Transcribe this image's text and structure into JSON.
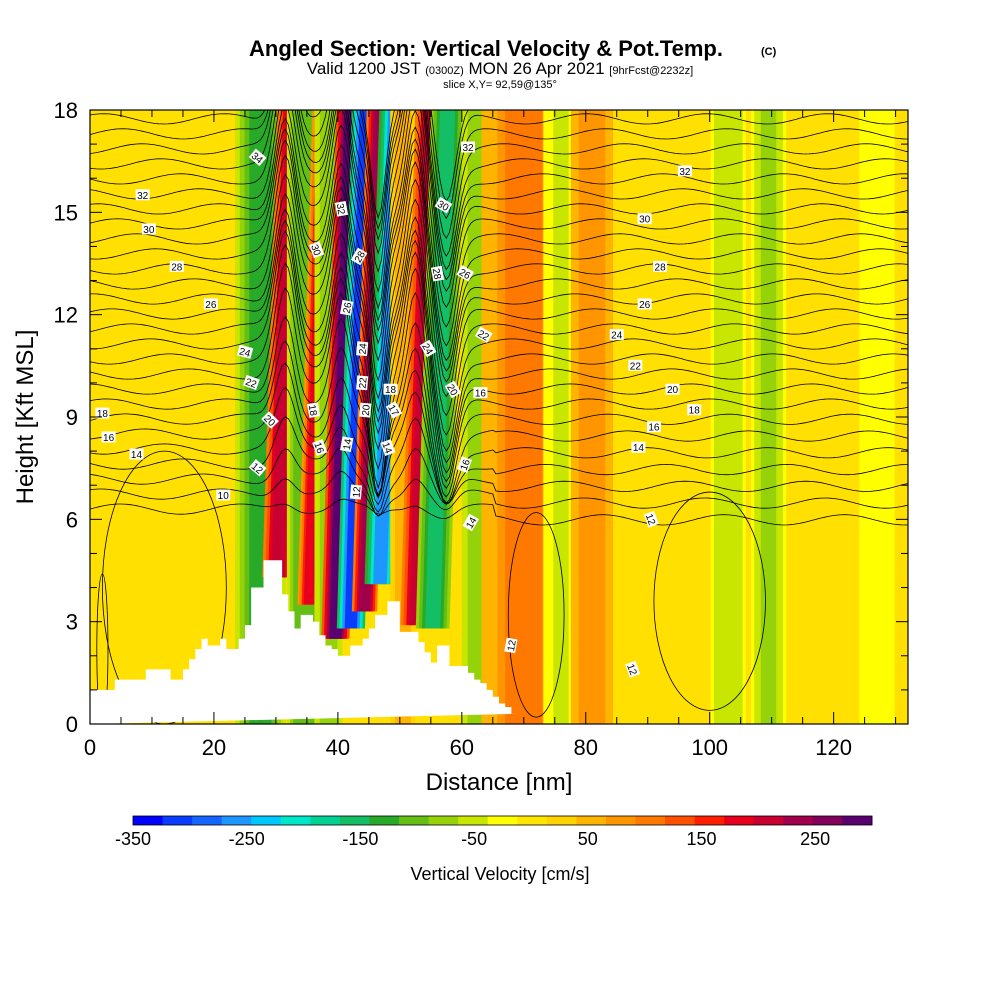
{
  "chart_data": {
    "type": "heatmap",
    "title": "Angled Section: Vertical Velocity & Pot.Temp.",
    "title_unit": "(C)",
    "subtitle": {
      "prefix": "Valid 1200 JST",
      "utc": "(0300Z)",
      "date": "MON 26 Apr 2021",
      "forecast": "[9hrFcst@2232z]"
    },
    "slice_text": "slice X,Y= 92,59@135°",
    "xlabel": "Distance [nm]",
    "ylabel": "Height [Kft MSL]",
    "xlim": [
      0,
      132
    ],
    "ylim": [
      0,
      18
    ],
    "x_ticks": [
      0,
      20,
      40,
      60,
      80,
      100,
      120
    ],
    "y_ticks": [
      0,
      3,
      6,
      9,
      12,
      15,
      18
    ],
    "grid": false,
    "colorbar": {
      "label": "Vertical Velocity [cm/s]",
      "ticks": [
        -350,
        -250,
        -150,
        -50,
        50,
        150,
        250
      ],
      "range": [
        -350,
        300
      ],
      "colors": [
        "#0000ff",
        "#0a3cff",
        "#1466ff",
        "#1e96ff",
        "#00c8ff",
        "#00e6c8",
        "#00d296",
        "#14be64",
        "#28aa28",
        "#64be14",
        "#96d20a",
        "#c8e600",
        "#ffff00",
        "#ffe600",
        "#ffd200",
        "#ffb400",
        "#ff9600",
        "#ff7800",
        "#ff5000",
        "#ff1e00",
        "#e6001e",
        "#c80032",
        "#a0004b",
        "#80005a",
        "#5a006e"
      ]
    },
    "vertical_velocity_columns": [
      {
        "x": 27.5,
        "w": 3.6,
        "value": -120
      },
      {
        "x": 31.5,
        "w": 2.2,
        "value": 220
      },
      {
        "x": 34.5,
        "w": 2.4,
        "value": -110
      },
      {
        "x": 36.5,
        "w": 1.6,
        "value": 180
      },
      {
        "x": 38.5,
        "w": 2.0,
        "value": -90
      },
      {
        "x": 40.8,
        "w": 2.0,
        "value": 280
      },
      {
        "x": 43.3,
        "w": 2.0,
        "value": -300
      },
      {
        "x": 45.5,
        "w": 1.8,
        "value": 240
      },
      {
        "x": 48.0,
        "w": 2.2,
        "value": -250
      },
      {
        "x": 50.5,
        "w": 1.8,
        "value": 60
      },
      {
        "x": 53.8,
        "w": 2.2,
        "value": 220
      },
      {
        "x": 56.5,
        "w": 2.4,
        "value": -160
      },
      {
        "x": 62.5,
        "w": 2.2,
        "value": -90
      },
      {
        "x": 70.0,
        "w": 6.0,
        "value": 95
      },
      {
        "x": 76.0,
        "w": 2.5,
        "value": -40
      },
      {
        "x": 81.0,
        "w": 3.0,
        "value": 85
      },
      {
        "x": 103.0,
        "w": 2.5,
        "value": -60
      },
      {
        "x": 109.5,
        "w": 2.5,
        "value": -70
      },
      {
        "x": 127.0,
        "w": 2.5,
        "value": -30
      }
    ],
    "terrain": {
      "x": [
        0,
        4,
        4,
        9,
        9,
        13,
        13,
        15,
        15,
        16,
        16,
        17,
        17,
        18,
        18,
        19,
        19,
        21,
        21,
        22,
        22,
        24,
        24,
        25,
        25,
        26,
        26,
        28,
        28,
        31,
        31,
        32,
        32,
        33,
        33,
        34,
        34,
        36,
        36,
        37,
        37,
        38,
        38,
        39,
        39,
        40,
        40,
        42,
        42,
        44,
        44,
        45,
        45,
        46,
        46,
        48,
        48,
        50,
        50,
        53,
        53,
        54,
        54,
        55,
        55,
        56,
        56,
        58,
        58,
        61,
        61,
        62,
        62,
        63,
        63,
        64,
        64,
        65,
        65,
        66,
        66,
        67,
        67,
        68,
        68,
        69,
        69,
        132
      ],
      "y": [
        1.0,
        1.0,
        1.3,
        1.3,
        1.6,
        1.6,
        1.3,
        1.3,
        1.6,
        1.6,
        1.9,
        1.9,
        2.2,
        2.2,
        2.5,
        2.5,
        2.3,
        2.3,
        2.5,
        2.5,
        2.2,
        2.2,
        2.5,
        2.5,
        2.9,
        2.9,
        4.0,
        4.0,
        4.8,
        4.8,
        3.8,
        3.8,
        3.3,
        3.3,
        2.8,
        2.8,
        3.2,
        3.2,
        3.0,
        3.0,
        2.6,
        2.6,
        2.3,
        2.3,
        2.2,
        2.2,
        2.0,
        2.0,
        2.3,
        2.3,
        2.5,
        2.5,
        2.8,
        2.8,
        3.2,
        3.2,
        3.6,
        3.6,
        2.7,
        2.7,
        2.4,
        2.4,
        2.1,
        2.1,
        1.8,
        1.8,
        2.3,
        2.3,
        1.7,
        1.7,
        1.5,
        1.5,
        1.3,
        1.3,
        1.2,
        1.2,
        1.0,
        1.0,
        0.8,
        0.8,
        0.6,
        0.6,
        0.5,
        0.5,
        0.3,
        0.3,
        0.3
      ]
    },
    "contour_labels": [
      {
        "x": 27,
        "y": 16.6,
        "text": "34",
        "angle": 40
      },
      {
        "x": 8.5,
        "y": 15.5,
        "text": "32",
        "angle": 0
      },
      {
        "x": 9.5,
        "y": 14.5,
        "text": "30",
        "angle": 0
      },
      {
        "x": 14,
        "y": 13.4,
        "text": "28",
        "angle": 0
      },
      {
        "x": 19.5,
        "y": 12.3,
        "text": "26",
        "angle": 0
      },
      {
        "x": 25,
        "y": 10.9,
        "text": "24",
        "angle": 15
      },
      {
        "x": 26,
        "y": 10.0,
        "text": "22",
        "angle": 20
      },
      {
        "x": 29,
        "y": 8.9,
        "text": "20",
        "angle": 45
      },
      {
        "x": 2,
        "y": 9.1,
        "text": "18",
        "angle": 0
      },
      {
        "x": 3,
        "y": 8.4,
        "text": "16",
        "angle": 0
      },
      {
        "x": 7.5,
        "y": 7.9,
        "text": "14",
        "angle": 0
      },
      {
        "x": 27,
        "y": 7.5,
        "text": "12",
        "angle": 40
      },
      {
        "x": 21.5,
        "y": 6.7,
        "text": "10",
        "angle": 0
      },
      {
        "x": 40.5,
        "y": 15.1,
        "text": "32",
        "angle": 80
      },
      {
        "x": 36.5,
        "y": 13.9,
        "text": "30",
        "angle": 70
      },
      {
        "x": 43.5,
        "y": 13.7,
        "text": "28",
        "angle": -60
      },
      {
        "x": 41.5,
        "y": 12.2,
        "text": "26",
        "angle": -80
      },
      {
        "x": 44,
        "y": 11.0,
        "text": "24",
        "angle": -85
      },
      {
        "x": 44,
        "y": 10.0,
        "text": "22",
        "angle": -85
      },
      {
        "x": 36,
        "y": 9.2,
        "text": "18",
        "angle": 80
      },
      {
        "x": 37,
        "y": 8.1,
        "text": "16",
        "angle": 70
      },
      {
        "x": 41.5,
        "y": 8.2,
        "text": "14",
        "angle": -80
      },
      {
        "x": 44.5,
        "y": 9.2,
        "text": "20",
        "angle": -85
      },
      {
        "x": 43,
        "y": 6.8,
        "text": "12",
        "angle": -85
      },
      {
        "x": 48.5,
        "y": 9.8,
        "text": "18",
        "angle": 0
      },
      {
        "x": 49,
        "y": 9.2,
        "text": "17",
        "angle": 60
      },
      {
        "x": 48,
        "y": 8.1,
        "text": "14",
        "angle": 70
      },
      {
        "x": 57,
        "y": 15.2,
        "text": "30",
        "angle": 30
      },
      {
        "x": 56,
        "y": 13.2,
        "text": "28",
        "angle": 80
      },
      {
        "x": 60.5,
        "y": 13.2,
        "text": "26",
        "angle": 30
      },
      {
        "x": 54.5,
        "y": 11.0,
        "text": "24",
        "angle": 60
      },
      {
        "x": 63.5,
        "y": 11.4,
        "text": "22",
        "angle": 30
      },
      {
        "x": 58.5,
        "y": 9.8,
        "text": "20",
        "angle": 60
      },
      {
        "x": 63,
        "y": 9.7,
        "text": "16",
        "angle": 0
      },
      {
        "x": 60.5,
        "y": 7.6,
        "text": "16",
        "angle": -70
      },
      {
        "x": 61.5,
        "y": 5.9,
        "text": "14",
        "angle": -60
      },
      {
        "x": 61,
        "y": 16.9,
        "text": "32",
        "angle": 0
      },
      {
        "x": 96,
        "y": 16.2,
        "text": "32",
        "angle": 0
      },
      {
        "x": 89.5,
        "y": 14.8,
        "text": "30",
        "angle": 0
      },
      {
        "x": 92,
        "y": 13.4,
        "text": "28",
        "angle": 0
      },
      {
        "x": 89.5,
        "y": 12.3,
        "text": "26",
        "angle": 0
      },
      {
        "x": 85,
        "y": 11.4,
        "text": "24",
        "angle": 0
      },
      {
        "x": 88,
        "y": 10.5,
        "text": "22",
        "angle": 0
      },
      {
        "x": 94,
        "y": 9.8,
        "text": "20",
        "angle": 0
      },
      {
        "x": 97.5,
        "y": 9.2,
        "text": "18",
        "angle": 0
      },
      {
        "x": 91,
        "y": 8.7,
        "text": "16",
        "angle": 0
      },
      {
        "x": 88.5,
        "y": 8.1,
        "text": "14",
        "angle": 0
      },
      {
        "x": 90.5,
        "y": 6.0,
        "text": "12",
        "angle": 70
      },
      {
        "x": 68,
        "y": 2.3,
        "text": "12",
        "angle": -80
      },
      {
        "x": 87.5,
        "y": 1.6,
        "text": "12",
        "angle": 70
      }
    ]
  }
}
